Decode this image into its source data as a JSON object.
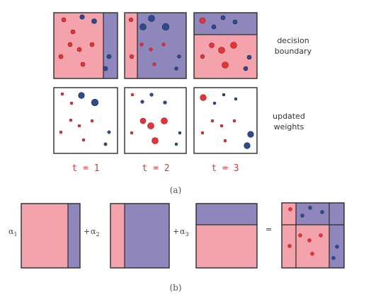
{
  "colors": {
    "pink": "#f4a3ad",
    "purple": "#8f86bc",
    "red_point": "#e63239",
    "blue_point": "#2f4a8e",
    "frame": "#2a2a2a"
  },
  "labels": {
    "decision_boundary": [
      "decision",
      "boundary"
    ],
    "updated_weights": [
      "updated",
      "weights"
    ],
    "panel_a": "(a)",
    "panel_b": "(b)"
  },
  "rounds": [
    {
      "label": "t = 1",
      "boundary": "vertical-right"
    },
    {
      "label": "t = 2",
      "boundary": "vertical-left"
    },
    {
      "label": "t = 3",
      "boundary": "horizontal-top"
    }
  ],
  "equation": {
    "alpha1": "α",
    "alpha1_sub": "1",
    "plus1": "+",
    "alpha2": "α",
    "alpha2_sub": "2",
    "plus2": "+",
    "alpha3": "α",
    "alpha3_sub": "3",
    "equals": "="
  }
}
